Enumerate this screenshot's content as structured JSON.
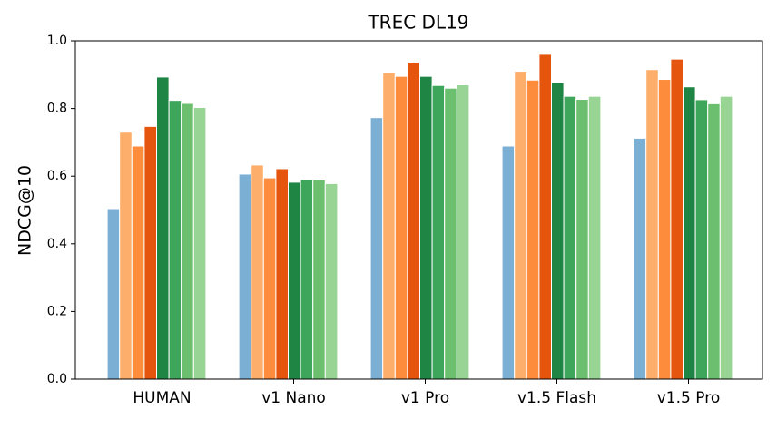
{
  "chart_data": {
    "type": "bar",
    "title": "TREC DL19",
    "y_label": "NDCG@10",
    "categories": [
      "HUMAN",
      "v1 Nano",
      "v1 Pro",
      "v1.5 Flash",
      "v1.5 Pro"
    ],
    "series": [
      {
        "color": "#7bafd4",
        "values": [
          0.504,
          0.606,
          0.773,
          0.689,
          0.712
        ]
      },
      {
        "color": "#fdae6b",
        "values": [
          0.73,
          0.633,
          0.906,
          0.91,
          0.915
        ]
      },
      {
        "color": "#fd8d3c",
        "values": [
          0.689,
          0.595,
          0.895,
          0.884,
          0.886
        ]
      },
      {
        "color": "#e6550d",
        "values": [
          0.747,
          0.622,
          0.937,
          0.96,
          0.946
        ]
      },
      {
        "color": "#1f8544",
        "values": [
          0.893,
          0.582,
          0.895,
          0.876,
          0.864
        ]
      },
      {
        "color": "#3ea65a",
        "values": [
          0.824,
          0.59,
          0.868,
          0.836,
          0.826
        ]
      },
      {
        "color": "#6cbf6f",
        "values": [
          0.815,
          0.589,
          0.86,
          0.827,
          0.814
        ]
      },
      {
        "color": "#98d594",
        "values": [
          0.803,
          0.578,
          0.87,
          0.836,
          0.836
        ]
      }
    ],
    "ylim": [
      0,
      1
    ],
    "yticks": [
      {
        "value": 0,
        "label": "0.0"
      },
      0.2,
      0.4,
      0.6,
      0.8,
      {
        "value": 1,
        "label": "1.0"
      }
    ],
    "grid": false
  }
}
